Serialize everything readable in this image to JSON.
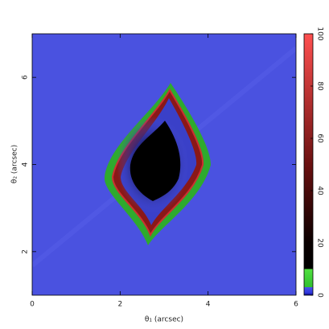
{
  "chart_data": {
    "type": "heatmap",
    "xlabel": "θ₁ (arcsec)",
    "ylabel": "θ₂ (arcsec)",
    "xlim": [
      0,
      6
    ],
    "xticks": [
      0,
      2,
      4,
      6
    ],
    "ylim": [
      1,
      7
    ],
    "yticks": [
      2,
      4,
      6
    ],
    "zlim": [
      0,
      100
    ],
    "zticks": [
      0,
      20,
      40,
      60,
      80,
      100
    ]
  }
}
